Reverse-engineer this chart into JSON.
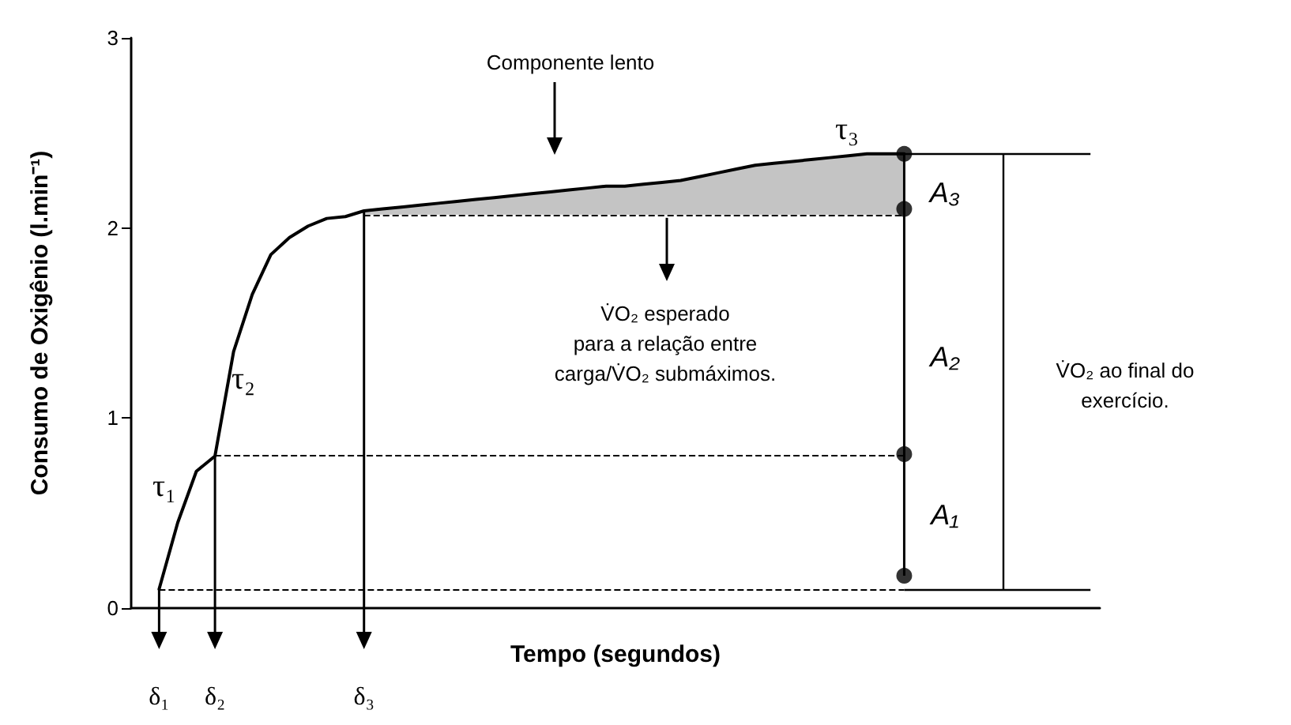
{
  "chart_data": {
    "type": "line",
    "xlabel": "Tempo (segundos)",
    "ylabel": "Consumo de Oxigênio (l.min⁻¹)",
    "categories": [
      null,
      null,
      null,
      null,
      null,
      null,
      null,
      null,
      null,
      null,
      null,
      null,
      null,
      null,
      null,
      null,
      null,
      null,
      null,
      null,
      null,
      null,
      null,
      null,
      null,
      null,
      null,
      null,
      null,
      null,
      null,
      null,
      null,
      null,
      null,
      null,
      null,
      null,
      null,
      null,
      null,
      null,
      null,
      null,
      null,
      null,
      null,
      null,
      null,
      null,
      null,
      null
    ],
    "series": [
      {
        "color": "#000000",
        "values": [
          null,
          0.1,
          0.45,
          0.72,
          0.8,
          1.35,
          1.65,
          1.86,
          1.95,
          2.01,
          2.05,
          2.06,
          2.09,
          2.1,
          2.11,
          2.12,
          2.13,
          2.14,
          2.15,
          2.16,
          2.17,
          2.18,
          2.19,
          2.2,
          2.21,
          2.22,
          2.22,
          2.23,
          2.24,
          2.25,
          2.27,
          2.29,
          2.31,
          2.33,
          2.34,
          2.35,
          2.36,
          2.37,
          2.38,
          2.39,
          2.39,
          2.39,
          null,
          null,
          null,
          null,
          null,
          null,
          null,
          null,
          null,
          null
        ],
        "lower": [
          null,
          null,
          null,
          null,
          null,
          null,
          null,
          null,
          null,
          null,
          null,
          null,
          2.07,
          2.07,
          2.07,
          2.07,
          2.07,
          2.07,
          2.07,
          2.07,
          2.07,
          2.07,
          2.07,
          2.07,
          2.07,
          2.07,
          2.07,
          2.07,
          2.07,
          2.07,
          2.07,
          2.07,
          2.07,
          2.07,
          2.07,
          2.07,
          2.07,
          2.07,
          2.07,
          2.07,
          2.07,
          2.07,
          null,
          null,
          null,
          null,
          null,
          null,
          null,
          null,
          null,
          null
        ],
        "upper": [
          null,
          null,
          null,
          null,
          null,
          null,
          null,
          null,
          null,
          null,
          null,
          null,
          2.09,
          2.1,
          2.11,
          2.12,
          2.13,
          2.14,
          2.15,
          2.16,
          2.17,
          2.18,
          2.19,
          2.2,
          2.21,
          2.22,
          2.22,
          2.23,
          2.24,
          2.25,
          2.27,
          2.29,
          2.31,
          2.33,
          2.34,
          2.35,
          2.36,
          2.37,
          2.38,
          2.39,
          2.39,
          2.39,
          null,
          null,
          null,
          null,
          null,
          null,
          null,
          null,
          null,
          null
        ]
      },
      {
        "type": "scatter",
        "marker": "circle",
        "color": "#000000",
        "values": [
          null,
          null,
          null,
          null,
          null,
          null,
          null,
          null,
          null,
          null,
          null,
          null,
          null,
          null,
          null,
          null,
          null,
          null,
          null,
          null,
          null,
          null,
          null,
          null,
          null,
          null,
          null,
          null,
          null,
          null,
          null,
          null,
          null,
          null,
          null,
          null,
          null,
          null,
          null,
          null,
          null,
          0.17,
          null,
          null,
          null,
          null,
          null,
          null,
          null,
          null,
          null,
          null
        ]
      },
      {
        "type": "scatter",
        "marker": "circle",
        "color": "#000000",
        "values": [
          null,
          null,
          null,
          null,
          null,
          null,
          null,
          null,
          null,
          null,
          null,
          null,
          null,
          null,
          null,
          null,
          null,
          null,
          null,
          null,
          null,
          null,
          null,
          null,
          null,
          null,
          null,
          null,
          null,
          null,
          null,
          null,
          null,
          null,
          null,
          null,
          null,
          null,
          null,
          null,
          null,
          0.81,
          null,
          null,
          null,
          null,
          null,
          null,
          null,
          null,
          null,
          null
        ]
      },
      {
        "type": "scatter",
        "marker": "circle",
        "color": "#000000",
        "values": [
          null,
          null,
          null,
          null,
          null,
          null,
          null,
          null,
          null,
          null,
          null,
          null,
          null,
          null,
          null,
          null,
          null,
          null,
          null,
          null,
          null,
          null,
          null,
          null,
          null,
          null,
          null,
          null,
          null,
          null,
          null,
          null,
          null,
          null,
          null,
          null,
          null,
          null,
          null,
          null,
          null,
          2.1,
          null,
          null,
          null,
          null,
          null,
          null,
          null,
          null,
          null,
          null
        ]
      },
      {
        "type": "scatter",
        "marker": "circle",
        "color": "#000000",
        "values": [
          null,
          null,
          null,
          null,
          null,
          null,
          null,
          null,
          null,
          null,
          null,
          null,
          null,
          null,
          null,
          null,
          null,
          null,
          null,
          null,
          null,
          null,
          null,
          null,
          null,
          null,
          null,
          null,
          null,
          null,
          null,
          null,
          null,
          null,
          null,
          null,
          null,
          null,
          null,
          null,
          null,
          2.39,
          null,
          null,
          null,
          null,
          null,
          null,
          null,
          null,
          null,
          null
        ]
      }
    ],
    "ylim": [
      0,
      3
    ],
    "yticks": [
      0,
      1,
      2,
      3
    ],
    "grid": false,
    "marker": "none",
    "line_style": "solid",
    "tick_labels": "y",
    "ref_lines": [
      {
        "axis": "y",
        "value": 0.1,
        "color": "#000000",
        "line_style": "dashed"
      },
      {
        "axis": "y",
        "value": 0.8,
        "color": "#000000",
        "line_style": "dashed"
      },
      {
        "axis": "y",
        "value": 2.07,
        "color": "#000000",
        "line_style": "dashed"
      },
      {
        "axis": "y",
        "value": 0.1,
        "color": "#000000",
        "line_style": "solid"
      },
      {
        "axis": "y",
        "value": 2.39,
        "color": "#000000",
        "line_style": "solid"
      }
    ],
    "annotations": [
      "Componente lento",
      "τ₁",
      "τ₂",
      "τ₃",
      "δ₁",
      "δ₂",
      "δ₃",
      "A₁",
      "A₂",
      "A₃",
      "V̇O₂ esperado\npara a relação entre\ncarga/V̇O₂ submáximos.",
      "V̇O₂ ao final do\nexercício."
    ]
  }
}
